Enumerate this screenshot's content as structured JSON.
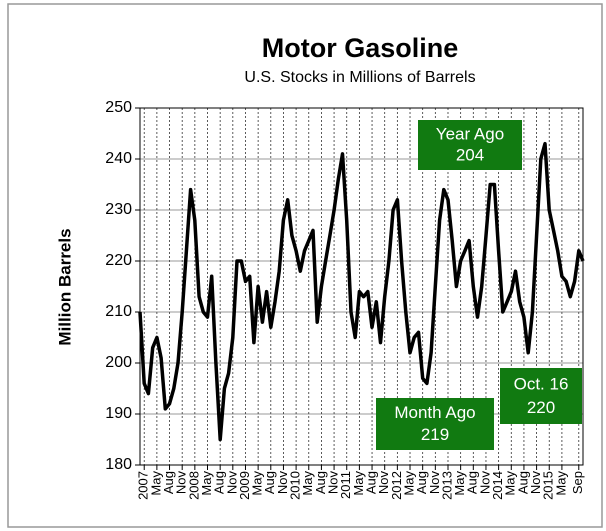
{
  "chart_data": {
    "type": "line",
    "title": "Motor Gasoline",
    "subtitle": "U.S. Stocks in Millions of Barrels",
    "ylabel": "Million Barrels",
    "x": [
      "2007-01",
      "2007-02",
      "2007-03",
      "2007-04",
      "2007-05",
      "2007-06",
      "2007-07",
      "2007-08",
      "2007-09",
      "2007-10",
      "2007-11",
      "2007-12",
      "2008-01",
      "2008-02",
      "2008-03",
      "2008-04",
      "2008-05",
      "2008-06",
      "2008-07",
      "2008-08",
      "2008-09",
      "2008-10",
      "2008-11",
      "2008-12",
      "2009-01",
      "2009-02",
      "2009-03",
      "2009-04",
      "2009-05",
      "2009-06",
      "2009-07",
      "2009-08",
      "2009-09",
      "2009-10",
      "2009-11",
      "2009-12",
      "2010-01",
      "2010-02",
      "2010-03",
      "2010-04",
      "2010-05",
      "2010-06",
      "2010-07",
      "2010-08",
      "2010-09",
      "2010-10",
      "2010-11",
      "2010-12",
      "2011-01",
      "2011-02",
      "2011-03",
      "2011-04",
      "2011-05",
      "2011-06",
      "2011-07",
      "2011-08",
      "2011-09",
      "2011-10",
      "2011-11",
      "2011-12",
      "2012-01",
      "2012-02",
      "2012-03",
      "2012-04",
      "2012-05",
      "2012-06",
      "2012-07",
      "2012-08",
      "2012-09",
      "2012-10",
      "2012-11",
      "2012-12",
      "2013-01",
      "2013-02",
      "2013-03",
      "2013-04",
      "2013-05",
      "2013-06",
      "2013-07",
      "2013-08",
      "2013-09",
      "2013-10",
      "2013-11",
      "2013-12",
      "2014-01",
      "2014-02",
      "2014-03",
      "2014-04",
      "2014-05",
      "2014-06",
      "2014-07",
      "2014-08",
      "2014-09",
      "2014-10",
      "2014-11",
      "2014-12",
      "2015-01",
      "2015-02",
      "2015-03",
      "2015-04",
      "2015-05",
      "2015-06",
      "2015-07",
      "2015-08",
      "2015-09",
      "2015-10"
    ],
    "series": [
      {
        "name": "Motor Gasoline",
        "color": "#000000",
        "values": [
          210,
          196,
          194,
          203,
          205,
          201,
          191,
          192,
          195,
          200,
          210,
          222,
          234,
          228,
          213,
          210,
          209,
          217,
          200,
          185,
          195,
          198,
          205,
          220,
          220,
          216,
          217,
          204,
          215,
          208,
          214,
          207,
          212,
          218,
          228,
          232,
          225,
          222,
          218,
          222,
          224,
          226,
          208,
          215,
          220,
          225,
          230,
          236,
          241,
          228,
          210,
          205,
          214,
          213,
          214,
          207,
          212,
          204,
          213,
          220,
          230,
          232,
          220,
          210,
          202,
          205,
          206,
          197,
          196,
          202,
          215,
          228,
          234,
          232,
          224,
          215,
          220,
          222,
          224,
          215,
          209,
          215,
          225,
          235,
          235,
          222,
          210,
          212,
          214,
          218,
          212,
          209,
          202,
          210,
          225,
          240,
          243,
          230,
          226,
          222,
          217,
          216,
          213,
          216,
          222,
          220
        ]
      }
    ],
    "xlim": [
      "2007-01",
      "2015-10"
    ],
    "xticks": [
      {
        "value": "2007-02",
        "label": "2007"
      },
      {
        "value": "2007-05",
        "label": "May"
      },
      {
        "value": "2007-08",
        "label": "Aug"
      },
      {
        "value": "2007-11",
        "label": "Nov"
      },
      {
        "value": "2008-02",
        "label": "2008"
      },
      {
        "value": "2008-05",
        "label": "May"
      },
      {
        "value": "2008-08",
        "label": "Aug"
      },
      {
        "value": "2008-11",
        "label": "Nov"
      },
      {
        "value": "2009-02",
        "label": "2009"
      },
      {
        "value": "2009-05",
        "label": "May"
      },
      {
        "value": "2009-08",
        "label": "Aug"
      },
      {
        "value": "2009-11",
        "label": "Nov"
      },
      {
        "value": "2010-02",
        "label": "2010"
      },
      {
        "value": "2010-05",
        "label": "May"
      },
      {
        "value": "2010-08",
        "label": "Aug"
      },
      {
        "value": "2010-11",
        "label": "Nov"
      },
      {
        "value": "2011-02",
        "label": "2011"
      },
      {
        "value": "2011-05",
        "label": "May"
      },
      {
        "value": "2011-08",
        "label": "Aug"
      },
      {
        "value": "2011-11",
        "label": "Nov"
      },
      {
        "value": "2012-02",
        "label": "2012"
      },
      {
        "value": "2012-05",
        "label": "May"
      },
      {
        "value": "2012-08",
        "label": "Aug"
      },
      {
        "value": "2012-11",
        "label": "Nov"
      },
      {
        "value": "2013-02",
        "label": "2013"
      },
      {
        "value": "2013-05",
        "label": "May"
      },
      {
        "value": "2013-08",
        "label": "Aug"
      },
      {
        "value": "2013-11",
        "label": "Nov"
      },
      {
        "value": "2014-02",
        "label": "2014"
      },
      {
        "value": "2014-05",
        "label": "May"
      },
      {
        "value": "2014-08",
        "label": "Aug"
      },
      {
        "value": "2014-11",
        "label": "Nov"
      },
      {
        "value": "2015-02",
        "label": "2015"
      },
      {
        "value": "2015-05",
        "label": "May"
      },
      {
        "value": "2015-09",
        "label": "Sep"
      }
    ],
    "ylim": [
      180,
      250
    ],
    "yticks": [
      180,
      190,
      200,
      210,
      220,
      230,
      240,
      250
    ],
    "grid": true,
    "annotations": [
      {
        "label": "Year Ago",
        "value": 204,
        "x": "2014-10"
      },
      {
        "label": "Month Ago",
        "value": 219,
        "x": "2015-09"
      },
      {
        "label": "Oct. 16",
        "value": 220,
        "x": "2015-10"
      }
    ],
    "annotation_color": "#117a11"
  }
}
